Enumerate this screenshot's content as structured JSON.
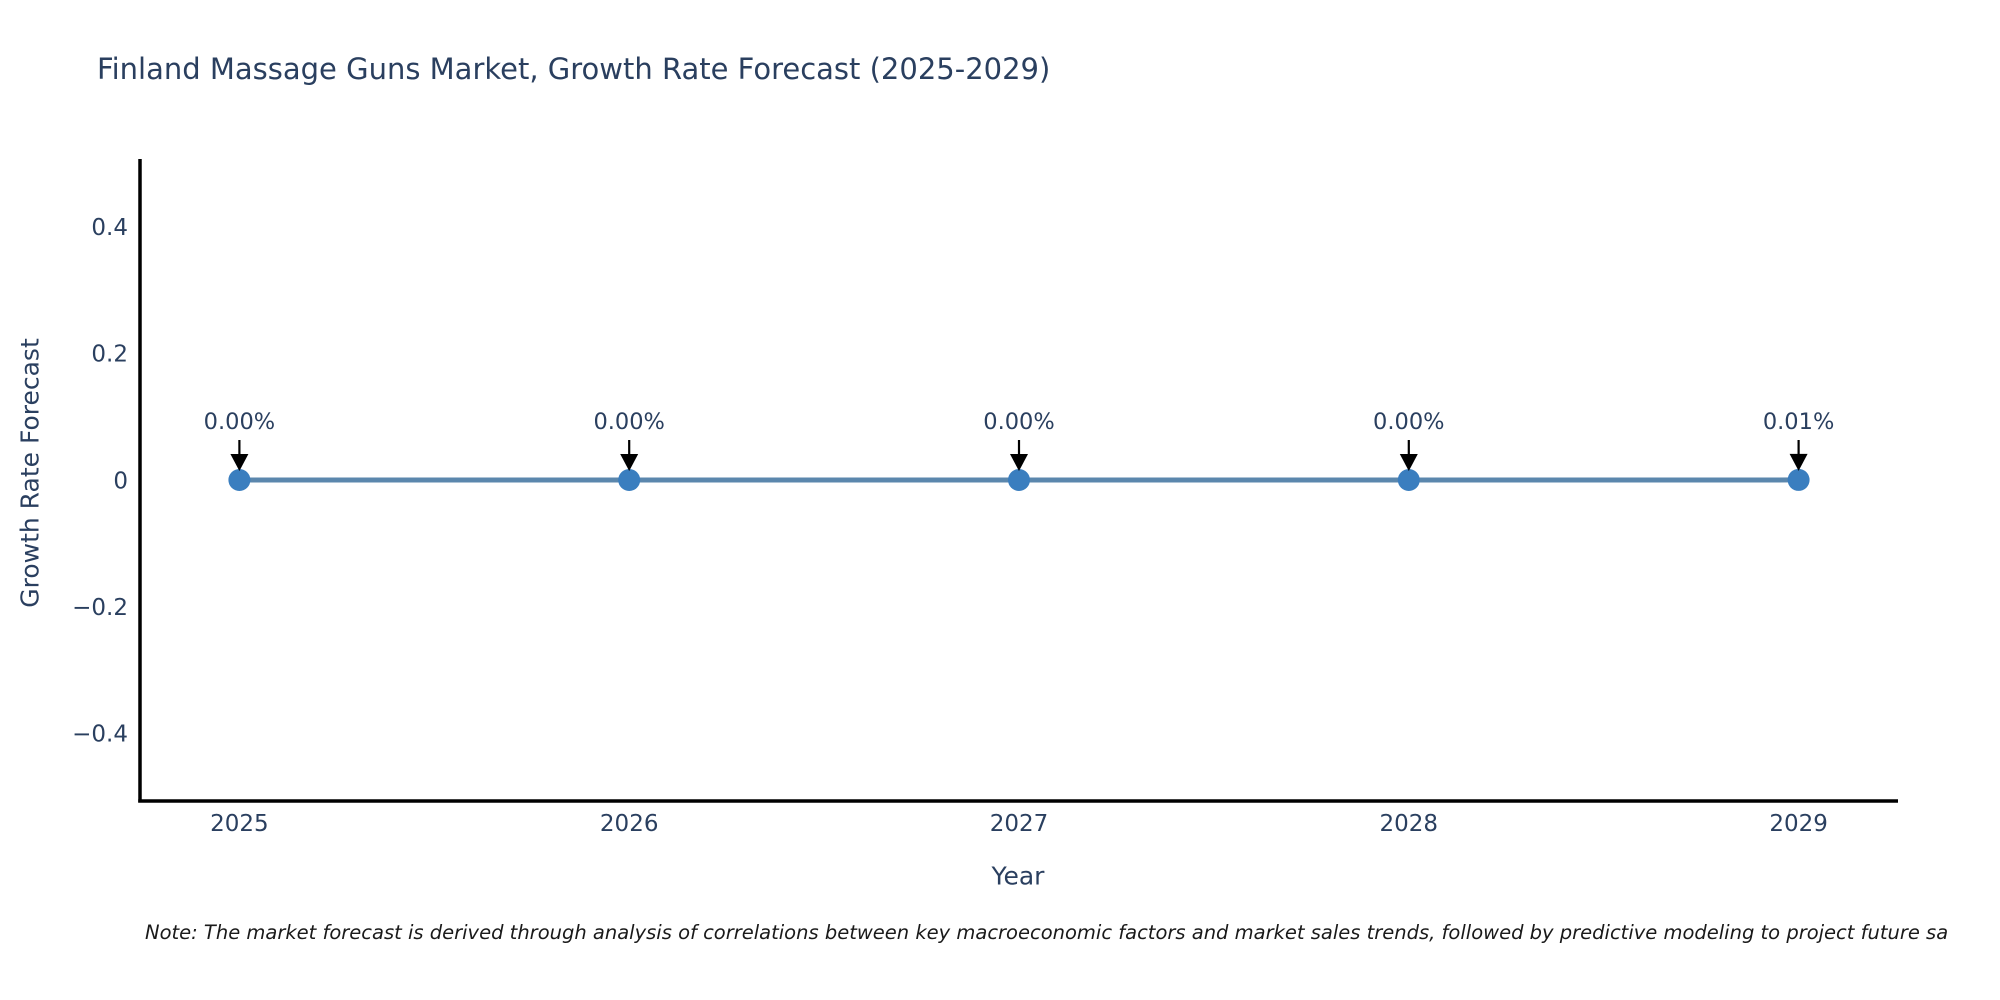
{
  "figure": {
    "title": "Finland Massage Guns Market, Growth Rate Forecast (2025-2029)",
    "note": "Note: The market forecast is derived through analysis of correlations between key macroeconomic factors and market sales trends, followed by predictive modeling to project future sa"
  },
  "chart_data": {
    "type": "line",
    "title": "Finland Massage Guns Market, Growth Rate Forecast (2025-2029)",
    "xlabel": "Year",
    "ylabel": "Growth Rate Forecast",
    "x": [
      2025,
      2026,
      2027,
      2028,
      2029
    ],
    "series": [
      {
        "name": "Growth Rate Forecast",
        "values": [
          0,
          0,
          0,
          0,
          0.0001
        ]
      }
    ],
    "point_labels": [
      "0.00%",
      "0.00%",
      "0.00%",
      "0.00%",
      "0.01%"
    ],
    "xticks": [
      {
        "value": 2025,
        "label": "2025"
      },
      {
        "value": 2026,
        "label": "2026"
      },
      {
        "value": 2027,
        "label": "2027"
      },
      {
        "value": 2028,
        "label": "2028"
      },
      {
        "value": 2029,
        "label": "2029"
      }
    ],
    "yticks": [
      {
        "value": 0.4,
        "label": "0.4"
      },
      {
        "value": 0.2,
        "label": "0.2"
      },
      {
        "value": 0,
        "label": "0"
      },
      {
        "value": -0.2,
        "label": "−0.2"
      },
      {
        "value": -0.4,
        "label": "−0.4"
      }
    ],
    "xlim": [
      2024.745,
      2029.255
    ],
    "ylim": [
      -0.507,
      0.507
    ],
    "grid": false,
    "legend": "none",
    "colors": {
      "line": "#5b87ad",
      "marker": "#3a7ebf",
      "arrow": "#000000",
      "axis": "#000000",
      "text": "#2a3f5f"
    }
  }
}
